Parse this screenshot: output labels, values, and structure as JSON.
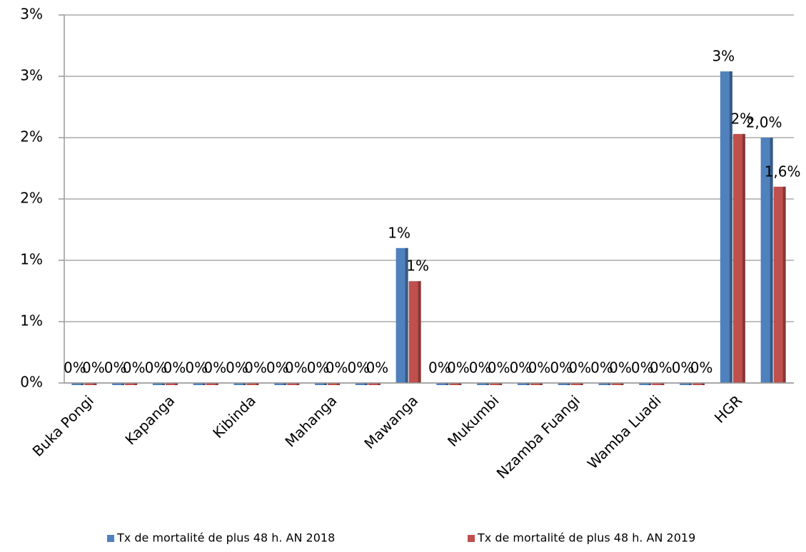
{
  "chart_data": {
    "type": "bar",
    "categories": [
      "Buka Pongi",
      null,
      "Kapanga",
      null,
      "Kibinda",
      null,
      "Mahanga",
      null,
      "Mawanga",
      null,
      "Mukumbi",
      null,
      "Nzamba Fuangi",
      null,
      "Wamba Luadi",
      null,
      "HGR",
      null
    ],
    "series": [
      {
        "name": "Tx de mortalité de plus 48 h. AN  2018",
        "color": "#4f81bd",
        "values": [
          0,
          0,
          0,
          0,
          0,
          0,
          0,
          0,
          1.1,
          0,
          0,
          0,
          0,
          0,
          0,
          0,
          2.54,
          2.0
        ],
        "value_labels": [
          "0%",
          "0%",
          "0%",
          "0%",
          "0%",
          "0%",
          "0%",
          "0%",
          "1%",
          "0%",
          "0%",
          "0%",
          "0%",
          "0%",
          "0%",
          "0%",
          "3%",
          "2,0%"
        ]
      },
      {
        "name": "Tx de mortalité de plus 48 h. AN  2019",
        "color": "#c0504d",
        "values": [
          0,
          0,
          0,
          0,
          0,
          0,
          0,
          0,
          0.83,
          0,
          0,
          0,
          0,
          0,
          0,
          0,
          2.03,
          1.6
        ],
        "value_labels": [
          "0%",
          "0%",
          "0%",
          "0%",
          "0%",
          "0%",
          "0%",
          "0%",
          "1%",
          "0%",
          "0%",
          "0%",
          "0%",
          "0%",
          "0%",
          "0%",
          "2%",
          "1,6%"
        ]
      }
    ],
    "ylim": [
      0,
      3
    ],
    "yticks": [
      {
        "value": 0,
        "label": "0%"
      },
      {
        "value": 0.5,
        "label": "1%"
      },
      {
        "value": 1,
        "label": "1%"
      },
      {
        "value": 1.5,
        "label": "2%"
      },
      {
        "value": 2,
        "label": "2%"
      },
      {
        "value": 2.5,
        "label": "3%"
      },
      {
        "value": 3,
        "label": "3%"
      }
    ],
    "grid": true,
    "legend": "bottom"
  }
}
